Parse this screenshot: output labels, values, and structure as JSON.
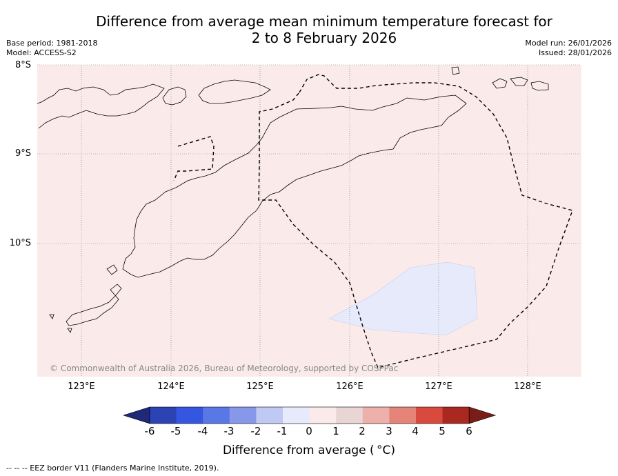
{
  "title": {
    "line1": "Difference from average mean minimum temperature forecast for",
    "line2": "2 to 8 February 2026"
  },
  "meta_left": {
    "base_period": "Base period: 1981-2018",
    "model": "Model: ACCESS-S2"
  },
  "meta_right": {
    "model_run": "Model run: 26/01/2026",
    "issued": "Issued: 28/01/2026"
  },
  "map": {
    "lat_labels": [
      "8°S",
      "9°S",
      "10°S"
    ],
    "lon_labels": [
      "123°E",
      "124°E",
      "125°E",
      "126°E",
      "127°E",
      "128°E"
    ],
    "copyright": "© Commonwealth of Australia 2026, Bureau of Meteorology, supported by COSPPac",
    "background_anomaly_color": "#faebea",
    "cool_patch_color": "#e6eafa"
  },
  "colorbar": {
    "tick_labels": [
      "-6",
      "-5",
      "-4",
      "-3",
      "-2",
      "-1",
      "0",
      "1",
      "2",
      "3",
      "4",
      "5",
      "6"
    ],
    "colors": [
      "#202878",
      "#2b43b3",
      "#3556e0",
      "#5a77e6",
      "#8798eb",
      "#c0c8f4",
      "#e6eafa",
      "#faebea",
      "#e8d5d4",
      "#eeb0aa",
      "#e58478",
      "#d84a3d",
      "#a92920",
      "#781d17"
    ],
    "title": "Difference from average ( °C)"
  },
  "footnote": "--  --  -- EEZ border V11 (Flanders Marine Institute, 2019)."
}
